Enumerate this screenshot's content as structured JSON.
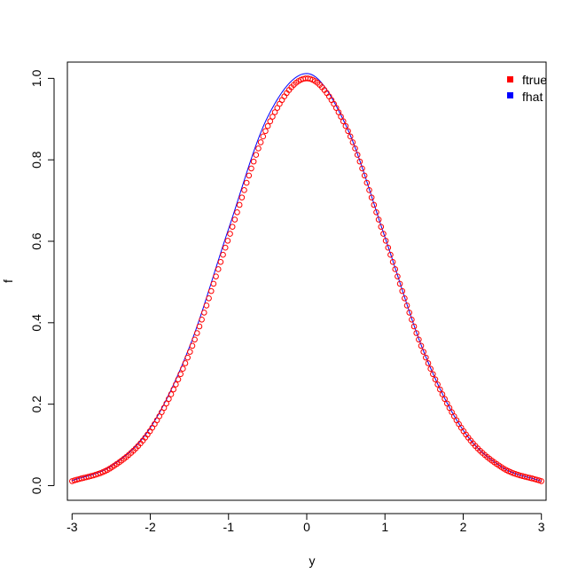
{
  "chart_data": {
    "type": "line",
    "title": "",
    "xlabel": "y",
    "ylabel": "f",
    "xlim": [
      -3.06,
      3.06
    ],
    "ylim": [
      -0.036,
      1.04
    ],
    "x_ticks": [
      "-3",
      "-2",
      "-1",
      "0",
      "1",
      "2",
      "3"
    ],
    "y_ticks": [
      "0.0",
      "0.2",
      "0.4",
      "0.6",
      "0.8",
      "1.0"
    ],
    "grid": false,
    "legend_position": "top-right",
    "series": [
      {
        "name": "ftrue",
        "color": "#ff0000",
        "style": "points",
        "x_range": [
          -3,
          3
        ],
        "n_points": 200,
        "values": [
          [
            -3.0,
            0.011
          ],
          [
            -2.5,
            0.044
          ],
          [
            -2.0,
            0.135
          ],
          [
            -1.5,
            0.325
          ],
          [
            -1.0,
            0.607
          ],
          [
            -0.5,
            0.882
          ],
          [
            0.0,
            1.0
          ],
          [
            0.5,
            0.882
          ],
          [
            1.0,
            0.607
          ],
          [
            1.5,
            0.325
          ],
          [
            2.0,
            0.135
          ],
          [
            2.5,
            0.044
          ],
          [
            3.0,
            0.011
          ]
        ]
      },
      {
        "name": "fhat",
        "color": "#0000ff",
        "style": "line",
        "values": [
          [
            -3.0,
            0.012
          ],
          [
            -2.5,
            0.048
          ],
          [
            -2.0,
            0.142
          ],
          [
            -1.5,
            0.34
          ],
          [
            -1.0,
            0.63
          ],
          [
            -0.5,
            0.905
          ],
          [
            0.0,
            1.012
          ],
          [
            0.5,
            0.885
          ],
          [
            1.0,
            0.61
          ],
          [
            1.5,
            0.327
          ],
          [
            2.0,
            0.136
          ],
          [
            2.5,
            0.045
          ],
          [
            3.0,
            0.011
          ]
        ]
      }
    ]
  }
}
